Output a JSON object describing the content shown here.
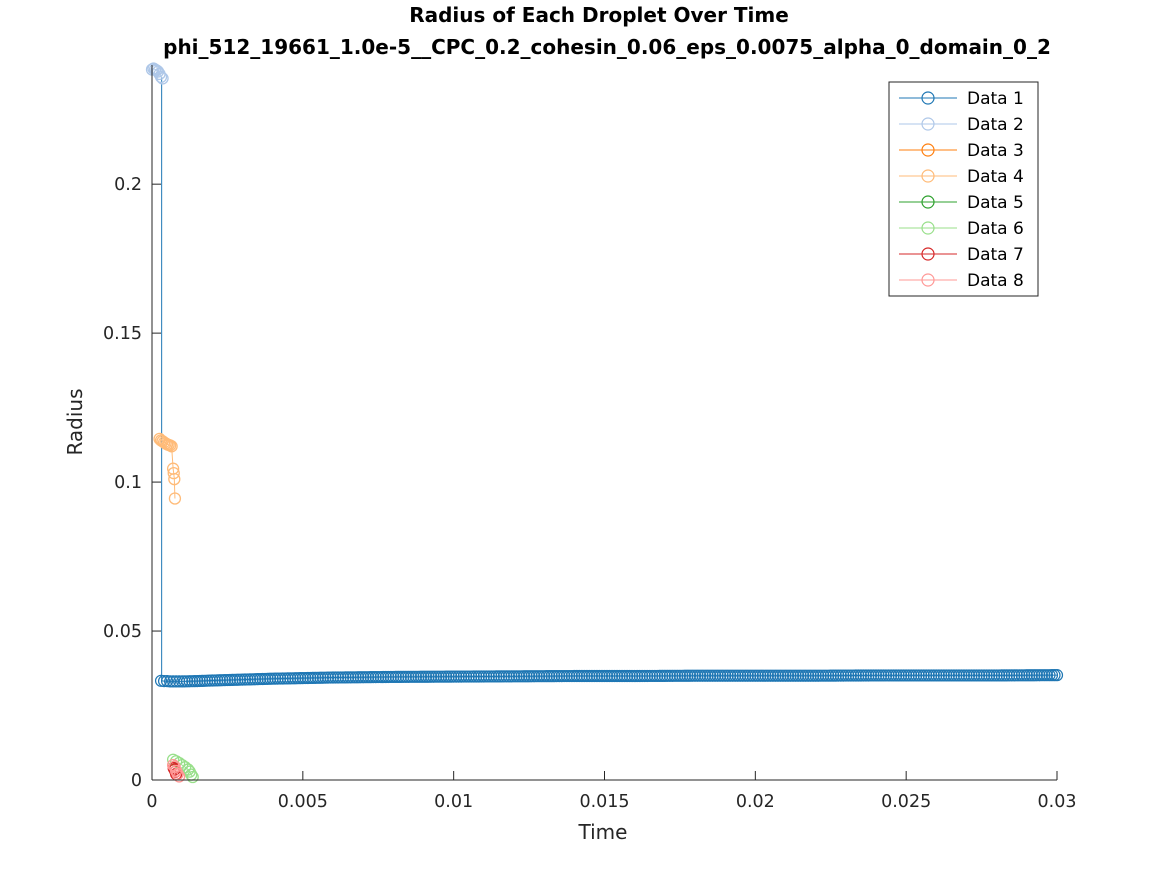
{
  "chart_data": {
    "type": "line",
    "title": "Radius of Each Droplet Over Time",
    "subtitle": "phi_512_19661_1.0e-5__CPC_0.2_cohesin_0.06_eps_0.0075_alpha_0_domain_0_2",
    "xlabel": "Time",
    "ylabel": "Radius",
    "xlim": [
      0,
      0.03
    ],
    "ylim": [
      0,
      0.24
    ],
    "xticks": [
      0,
      0.005,
      0.01,
      0.015,
      0.02,
      0.025,
      0.03
    ],
    "xtick_labels": [
      "0",
      "0.005",
      "0.01",
      "0.015",
      "0.02",
      "0.025",
      "0.03"
    ],
    "yticks": [
      0,
      0.05,
      0.1,
      0.15,
      0.2
    ],
    "ytick_labels": [
      "0",
      "0.05",
      "0.1",
      "0.15",
      "0.2"
    ],
    "grid": false,
    "legend_position": "top-right",
    "series": [
      {
        "name": "Data 1",
        "color": "#1f77b4",
        "x": [
          0.0003,
          0.0004,
          0.0005,
          0.0006,
          0.0008,
          0.001,
          0.0015,
          0.002,
          0.003,
          0.004,
          0.005,
          0.006,
          0.007,
          0.008,
          0.01,
          0.012,
          0.014,
          0.016,
          0.018,
          0.02,
          0.022,
          0.024,
          0.026,
          0.028,
          0.03
        ],
        "y": [
          0.0333,
          0.0332,
          0.0332,
          0.0331,
          0.0331,
          0.0331,
          0.0332,
          0.0334,
          0.0337,
          0.034,
          0.0342,
          0.0344,
          0.0345,
          0.0346,
          0.0347,
          0.0348,
          0.0349,
          0.0349,
          0.035,
          0.035,
          0.035,
          0.0351,
          0.0351,
          0.0351,
          0.0352
        ]
      },
      {
        "name": "Data 2",
        "color": "#aec7e8",
        "x": [
          0.0,
          5e-05,
          0.0001,
          0.00015,
          0.0002,
          0.00025,
          0.0003,
          0.00035
        ],
        "y": [
          0.2385,
          0.2388,
          0.2385,
          0.2382,
          0.2378,
          0.237,
          0.236,
          0.2355
        ]
      },
      {
        "name": "Data 3",
        "color": "#ff7f0e",
        "x": [],
        "y": []
      },
      {
        "name": "Data 4",
        "color": "#ffbb78",
        "x": [
          0.00025,
          0.0003,
          0.00035,
          0.0004,
          0.00045,
          0.0005,
          0.00055,
          0.0006,
          0.00065,
          0.0007,
          0.00072,
          0.00074,
          0.00076
        ],
        "y": [
          0.1145,
          0.114,
          0.1137,
          0.1133,
          0.113,
          0.1127,
          0.1125,
          0.1123,
          0.112,
          0.1045,
          0.103,
          0.101,
          0.0945
        ]
      },
      {
        "name": "Data 5",
        "color": "#2ca02c",
        "x": [],
        "y": []
      },
      {
        "name": "Data 6",
        "color": "#98df8a",
        "x": [
          0.0007,
          0.0008,
          0.0009,
          0.001,
          0.0011,
          0.0012,
          0.00125,
          0.0013,
          0.00135
        ],
        "y": [
          0.0068,
          0.0063,
          0.0057,
          0.005,
          0.0043,
          0.0035,
          0.0028,
          0.0018,
          0.001
        ]
      },
      {
        "name": "Data 7",
        "color": "#d62728",
        "x": [
          0.00072,
          0.00075,
          0.00078,
          0.0008
        ],
        "y": [
          0.004,
          0.0035,
          0.0028,
          0.002
        ]
      },
      {
        "name": "Data 8",
        "color": "#ff9896",
        "x": [
          0.0007,
          0.00075,
          0.0008,
          0.00085,
          0.0009
        ],
        "y": [
          0.005,
          0.0045,
          0.003,
          0.002,
          0.0012
        ]
      }
    ]
  }
}
